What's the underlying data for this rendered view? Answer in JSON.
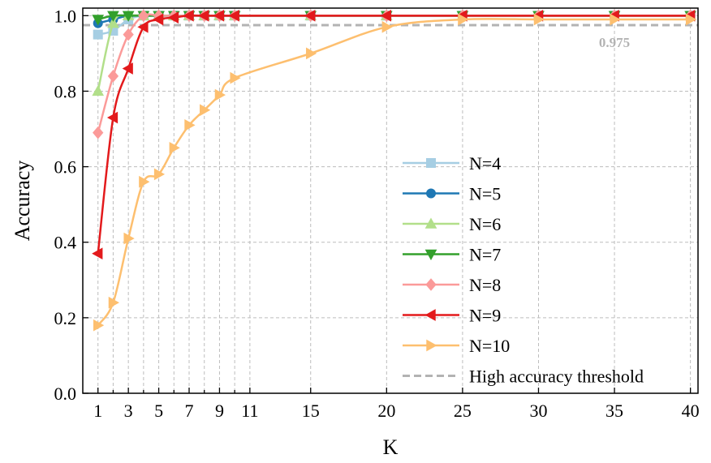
{
  "chart_data": {
    "type": "line",
    "title": "",
    "xlabel": "K",
    "ylabel": "Accuracy",
    "xlim": [
      0,
      40.5
    ],
    "ylim": [
      0,
      1.02
    ],
    "x_ticks": [
      1,
      3,
      5,
      7,
      9,
      11,
      15,
      20,
      25,
      30,
      35,
      40
    ],
    "x_minor_ticks": [
      2,
      4,
      6,
      8,
      10
    ],
    "y_ticks": [
      0.0,
      0.2,
      0.4,
      0.6,
      0.8,
      1.0
    ],
    "x_tick_labels": [
      "1",
      "3",
      "5",
      "7",
      "9",
      "11",
      "15",
      "20",
      "25",
      "30",
      "35",
      "40"
    ],
    "y_tick_labels": [
      "0.0",
      "0.2",
      "0.4",
      "0.6",
      "0.8",
      "1.0"
    ],
    "grid": true,
    "legend_position": "bottom-right",
    "series": [
      {
        "name": "N=4",
        "color": "#a6cee3",
        "marker": "square",
        "x": [
          1,
          2,
          3,
          4,
          5,
          6,
          7,
          8,
          9,
          10,
          15,
          20,
          25,
          30,
          35,
          40
        ],
        "values": [
          0.95,
          0.96,
          0.99,
          1.0,
          1.0,
          1.0,
          1.0,
          1.0,
          1.0,
          1.0,
          1.0,
          1.0,
          1.0,
          1.0,
          1.0,
          1.0
        ]
      },
      {
        "name": "N=5",
        "color": "#1f78b4",
        "marker": "circle",
        "x": [
          1,
          2,
          3,
          4,
          5,
          6,
          7,
          8,
          9,
          10,
          15,
          20,
          25,
          30,
          35,
          40
        ],
        "values": [
          0.98,
          0.99,
          1.0,
          1.0,
          1.0,
          1.0,
          1.0,
          1.0,
          1.0,
          1.0,
          1.0,
          1.0,
          1.0,
          1.0,
          1.0,
          1.0
        ]
      },
      {
        "name": "N=6",
        "color": "#b2df8a",
        "marker": "triangle-up",
        "x": [
          1,
          2,
          3,
          4,
          5,
          6,
          7,
          8,
          9,
          10,
          15,
          20,
          25,
          30,
          35,
          40
        ],
        "values": [
          0.8,
          0.98,
          1.0,
          1.0,
          1.0,
          1.0,
          1.0,
          1.0,
          1.0,
          1.0,
          1.0,
          1.0,
          1.0,
          1.0,
          1.0,
          1.0
        ]
      },
      {
        "name": "N=7",
        "color": "#33a02c",
        "marker": "triangle-down",
        "x": [
          1,
          2,
          3,
          4,
          5,
          6,
          7,
          8,
          9,
          10,
          15,
          20,
          25,
          30,
          35,
          40
        ],
        "values": [
          0.99,
          1.0,
          1.0,
          1.0,
          1.0,
          1.0,
          1.0,
          1.0,
          1.0,
          1.0,
          1.0,
          1.0,
          1.0,
          1.0,
          1.0,
          1.0
        ]
      },
      {
        "name": "N=8",
        "color": "#fb9a99",
        "marker": "diamond",
        "x": [
          1,
          2,
          3,
          4,
          5,
          6,
          7,
          8,
          9,
          10,
          15,
          20,
          25,
          30,
          35,
          40
        ],
        "values": [
          0.69,
          0.84,
          0.95,
          1.0,
          1.0,
          1.0,
          1.0,
          1.0,
          1.0,
          1.0,
          1.0,
          1.0,
          1.0,
          1.0,
          1.0,
          1.0
        ]
      },
      {
        "name": "N=9",
        "color": "#e31a1c",
        "marker": "triangle-left",
        "x": [
          1,
          2,
          3,
          4,
          5,
          6,
          7,
          8,
          9,
          10,
          15,
          20,
          25,
          30,
          35,
          40
        ],
        "values": [
          0.37,
          0.73,
          0.86,
          0.97,
          0.99,
          0.995,
          1.0,
          1.0,
          1.0,
          1.0,
          1.0,
          1.0,
          1.0,
          1.0,
          1.0,
          1.0
        ]
      },
      {
        "name": "N=10",
        "color": "#fdbf6f",
        "marker": "triangle-right",
        "x": [
          1,
          2,
          3,
          4,
          5,
          6,
          7,
          8,
          9,
          10,
          15,
          20,
          25,
          30,
          35,
          40
        ],
        "values": [
          0.18,
          0.24,
          0.41,
          0.56,
          0.58,
          0.65,
          0.71,
          0.75,
          0.79,
          0.835,
          0.9,
          0.97,
          0.99,
          0.99,
          0.99,
          0.99
        ]
      }
    ],
    "threshold": {
      "name": "High accuracy threshold",
      "value": 0.975,
      "label": "0.975",
      "color": "#b3b3b3"
    }
  }
}
